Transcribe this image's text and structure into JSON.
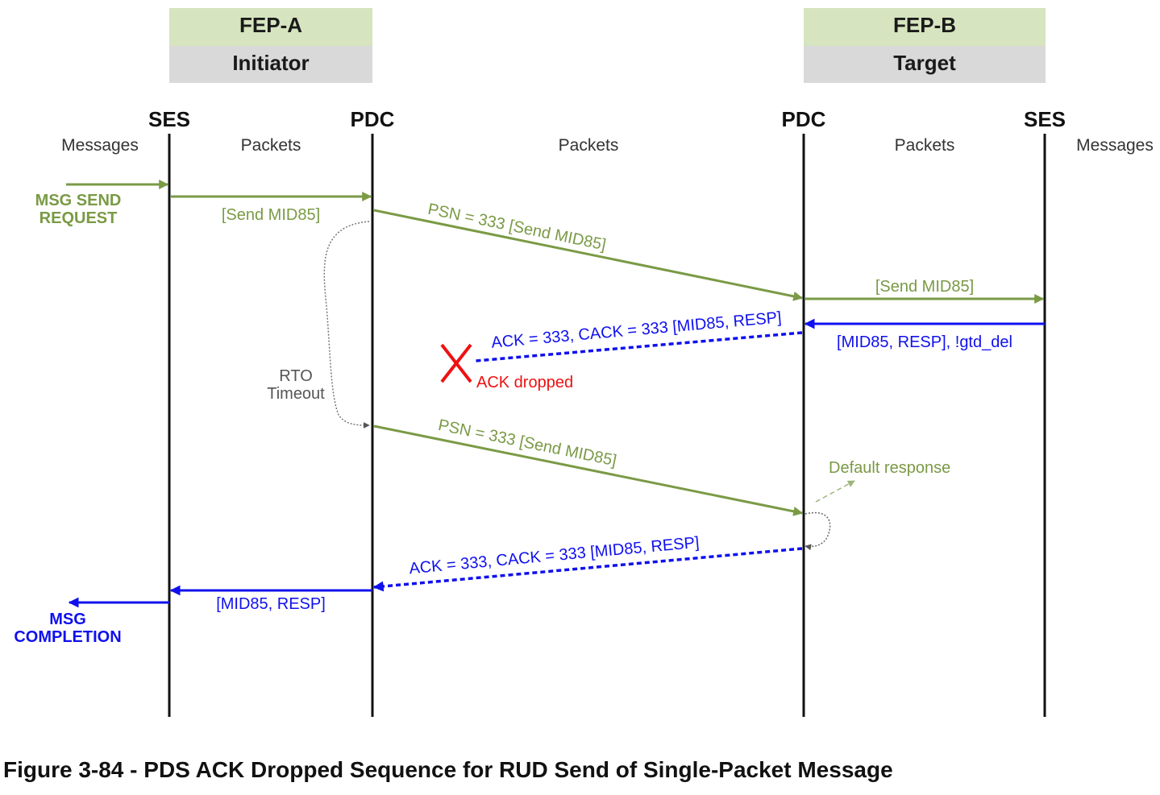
{
  "headers": {
    "fep_a": {
      "name": "FEP-A",
      "role": "Initiator"
    },
    "fep_b": {
      "name": "FEP-B",
      "role": "Target"
    }
  },
  "lanes": {
    "ses_a": "SES",
    "pdc_a": "PDC",
    "pdc_b": "PDC",
    "ses_b": "SES"
  },
  "sublabels": {
    "messages_left": "Messages",
    "packets_a": "Packets",
    "packets_mid": "Packets",
    "packets_b": "Packets",
    "messages_right": "Messages"
  },
  "events": {
    "msg_send_request_1": "MSG SEND",
    "msg_send_request_2": "REQUEST",
    "send_ses_to_pdc": "[Send MID85]",
    "psn_first": "PSN = 333  [Send MID85]",
    "send_pdc_to_ses": "[Send MID85]",
    "resp_ses_to_pdc": "[MID85, RESP], !gtd_del",
    "ack_first": "ACK = 333, CACK = 333 [MID85, RESP]",
    "ack_dropped": "ACK dropped",
    "rto_1": "RTO",
    "rto_2": "Timeout",
    "psn_second": "PSN = 333  [Send MID85]",
    "default_response": "Default response",
    "ack_second": "ACK = 333, CACK = 333 [MID85, RESP]",
    "resp_pdc_to_ses": "[MID85, RESP]",
    "msg_completion_1": "MSG",
    "msg_completion_2": "COMPLETION"
  },
  "colors": {
    "green": "#7a9a45",
    "blue": "#1010ee",
    "red": "#ee1111",
    "header_green": "#d6e4bf",
    "header_gray": "#d9d9d9"
  },
  "caption": "Figure 3-84 - PDS ACK Dropped Sequence for RUD Send of Single-Packet Message"
}
